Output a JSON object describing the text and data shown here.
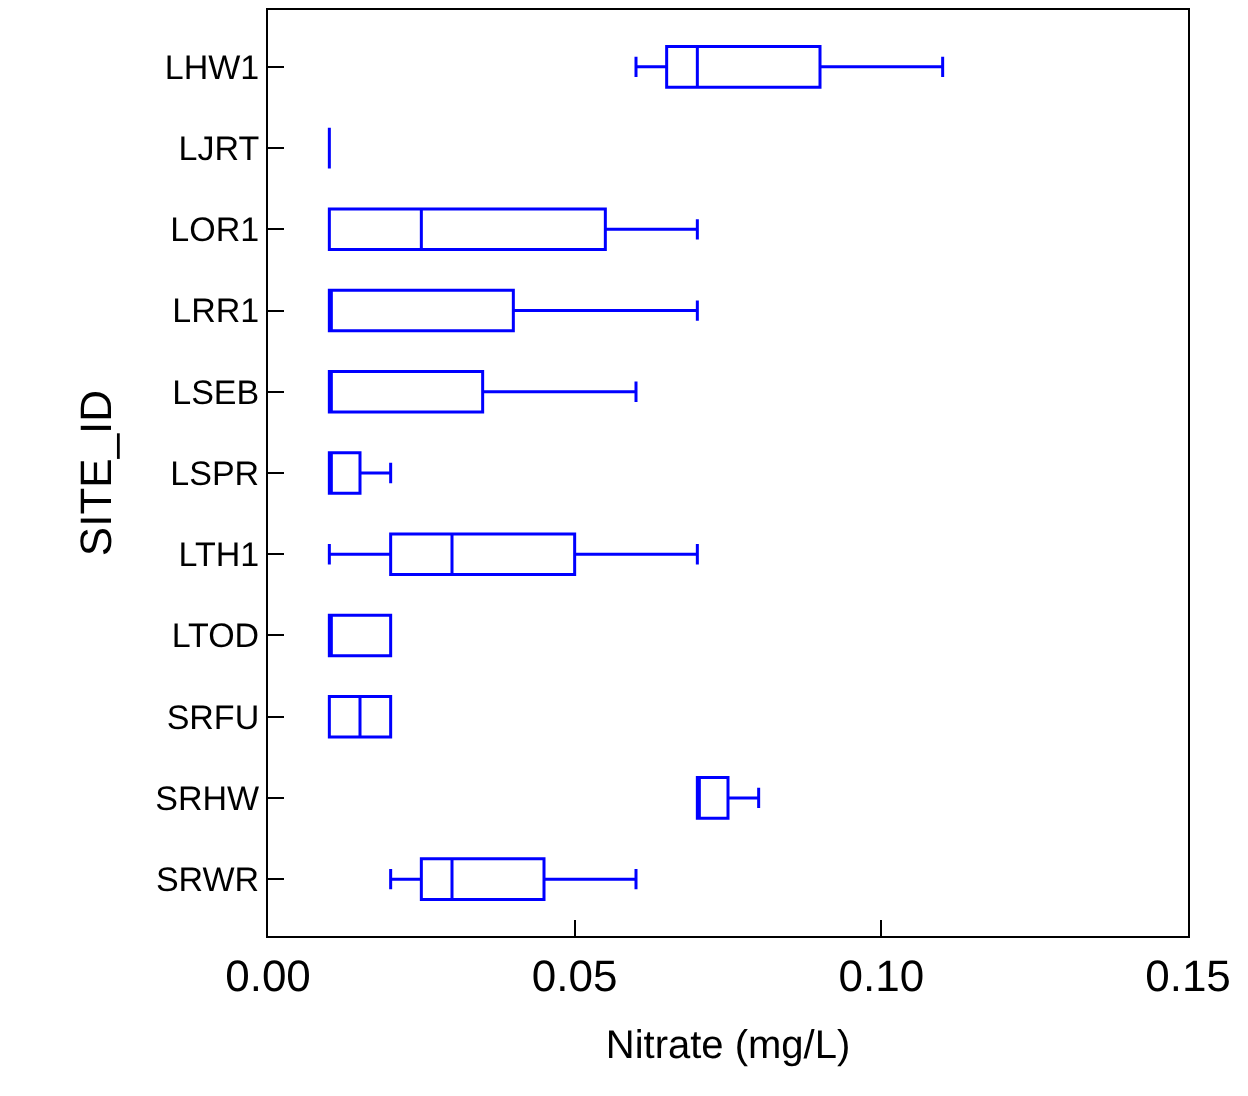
{
  "chart_data": {
    "type": "box",
    "orientation": "horizontal",
    "xlabel": "Nitrate (mg/L)",
    "ylabel": "SITE_ID",
    "categories": [
      "LHW1",
      "LJRT",
      "LOR1",
      "LRR1",
      "LSEB",
      "LSPR",
      "LTH1",
      "LTOD",
      "SRFU",
      "SRHW",
      "SRWR"
    ],
    "boxes": [
      {
        "low": 0.06,
        "q1": 0.065,
        "median": 0.07,
        "q3": 0.09,
        "high": 0.11
      },
      {
        "low": 0.01,
        "q1": 0.01,
        "median": 0.01,
        "q3": 0.01,
        "high": 0.01
      },
      {
        "low": 0.01,
        "q1": 0.01,
        "median": 0.025,
        "q3": 0.055,
        "high": 0.07
      },
      {
        "low": 0.01,
        "q1": 0.01,
        "median": 0.01,
        "q3": 0.04,
        "high": 0.07
      },
      {
        "low": 0.01,
        "q1": 0.01,
        "median": 0.01,
        "q3": 0.035,
        "high": 0.06
      },
      {
        "low": 0.01,
        "q1": 0.01,
        "median": 0.01,
        "q3": 0.015,
        "high": 0.02
      },
      {
        "low": 0.01,
        "q1": 0.02,
        "median": 0.03,
        "q3": 0.05,
        "high": 0.07
      },
      {
        "low": 0.01,
        "q1": 0.01,
        "median": 0.01,
        "q3": 0.02,
        "high": 0.02
      },
      {
        "low": 0.01,
        "q1": 0.01,
        "median": 0.015,
        "q3": 0.02,
        "high": 0.02
      },
      {
        "low": 0.07,
        "q1": 0.07,
        "median": 0.07,
        "q3": 0.075,
        "high": 0.08
      },
      {
        "low": 0.02,
        "q1": 0.025,
        "median": 0.03,
        "q3": 0.045,
        "high": 0.06
      }
    ],
    "color": "#0000ff",
    "xlim": [
      0,
      0.15
    ],
    "xticks": [
      {
        "value": 0,
        "label": "0.00"
      },
      {
        "value": 0.05,
        "label": "0.05"
      },
      {
        "value": 0.1,
        "label": "0.10"
      },
      {
        "value": 0.15,
        "label": "0.15"
      }
    ],
    "legend": false
  }
}
